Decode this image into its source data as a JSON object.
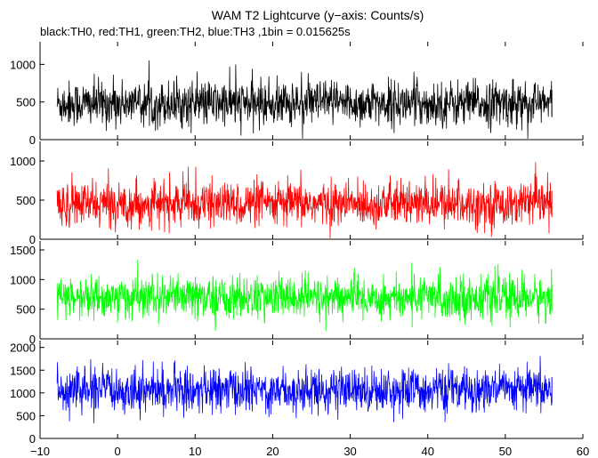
{
  "figure": {
    "title": "WAM T2 Lightcurve (y−axis: Counts/s)",
    "subtitle": "black:TH0, red:TH1, green:TH2, blue:TH3 ,1bin = 0.015625s"
  },
  "chart_data": {
    "type": "line",
    "title": "WAM T2 Lightcurve (y−axis: Counts/s)",
    "subtitle": "black:TH0, red:TH1, green:TH2, blue:TH3 ,1bin = 0.015625s",
    "xlabel": "",
    "ylabel": "",
    "xlim": [
      -10,
      60
    ],
    "x_ticks": [
      -10,
      0,
      10,
      20,
      30,
      40,
      50,
      60
    ],
    "x_tick_labels": [
      "−10",
      "0",
      "10",
      "20",
      "30",
      "40",
      "50",
      "60"
    ],
    "x_range": [
      -7.8,
      56.0
    ],
    "bin_size_s": 0.015625,
    "grid": false,
    "legend": "none",
    "panels": [
      {
        "name": "TH0",
        "color": "#000000",
        "ylim": [
          0,
          1300
        ],
        "y_ticks": [
          0,
          500,
          1000
        ],
        "y_tick_labels": [
          "0",
          "500",
          "1000"
        ],
        "mean": 480,
        "noise_sd": 150,
        "typical_min": 200,
        "typical_max": 1200
      },
      {
        "name": "TH1",
        "color": "#ff0000",
        "ylim": [
          0,
          1250
        ],
        "y_ticks": [
          0,
          500,
          1000
        ],
        "y_tick_labels": [
          "0",
          "500",
          "1000"
        ],
        "mean": 450,
        "noise_sd": 140,
        "typical_min": 100,
        "typical_max": 1050
      },
      {
        "name": "TH2",
        "color": "#00ff00",
        "ylim": [
          0,
          1650
        ],
        "y_ticks": [
          0,
          500,
          1000,
          1500
        ],
        "y_tick_labels": [
          "0",
          "500",
          "1000",
          "1500"
        ],
        "mean": 690,
        "noise_sd": 180,
        "typical_min": 100,
        "typical_max": 1500
      },
      {
        "name": "TH3",
        "color": "#0000ff",
        "ylim": [
          0,
          2150
        ],
        "y_ticks": [
          0,
          500,
          1000,
          1500,
          2000
        ],
        "y_tick_labels": [
          "0",
          "500",
          "1000",
          "1500",
          "2000"
        ],
        "mean": 1060,
        "noise_sd": 240,
        "typical_min": 300,
        "typical_max": 2000
      }
    ]
  }
}
